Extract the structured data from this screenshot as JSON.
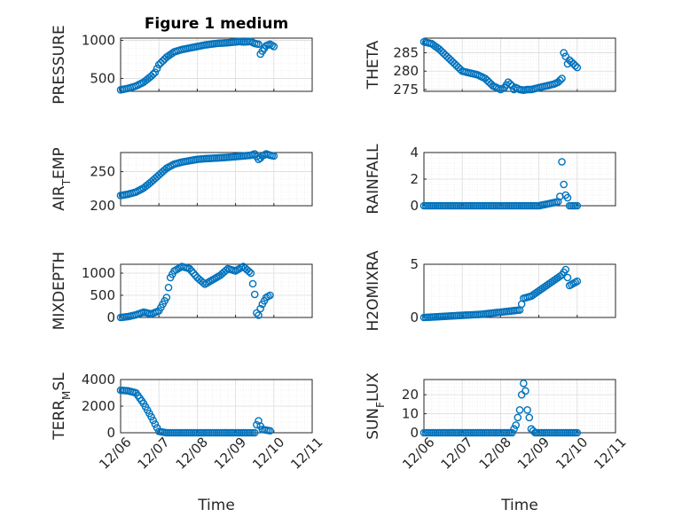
{
  "chart_data": [
    {
      "id": "pressure",
      "type": "scatter",
      "title": "Figure 1 medium",
      "ylabel": "PRESSURE",
      "ylim": [
        330,
        1030
      ],
      "yticks": [
        500,
        1000
      ],
      "xlim": [
        0,
        5
      ],
      "xtick_labels": [
        "12/06",
        "12/07",
        "12/08",
        "12/09",
        "12/10",
        "12/11"
      ],
      "color": "#0072BD",
      "x": [
        0,
        0.2,
        0.4,
        0.6,
        0.8,
        0.9,
        1.0,
        1.2,
        1.4,
        1.6,
        1.8,
        2.0,
        2.2,
        2.5,
        2.8,
        3.1,
        3.2,
        3.4,
        3.5,
        3.6,
        3.65,
        3.7,
        3.8,
        3.9,
        4.0
      ],
      "y": [
        350,
        370,
        400,
        450,
        530,
        580,
        680,
        780,
        850,
        880,
        900,
        920,
        940,
        960,
        970,
        985,
        980,
        985,
        960,
        950,
        820,
        860,
        930,
        950,
        920
      ]
    },
    {
      "id": "theta",
      "type": "scatter",
      "ylabel": "THETA",
      "ylim": [
        274.5,
        289
      ],
      "yticks": [
        275,
        280,
        285
      ],
      "xlim": [
        0,
        5
      ],
      "x": [
        0,
        0.2,
        0.4,
        0.6,
        0.8,
        1.0,
        1.2,
        1.4,
        1.6,
        1.8,
        2.0,
        2.1,
        2.2,
        2.3,
        2.35,
        2.4,
        2.5,
        2.6,
        2.7,
        2.8,
        3.0,
        3.2,
        3.4,
        3.5,
        3.6,
        3.65,
        3.7,
        3.75,
        3.8,
        3.9,
        4.0
      ],
      "y": [
        288,
        287.5,
        286,
        284,
        282,
        280,
        279.5,
        279,
        278,
        276,
        275,
        275.5,
        277,
        276,
        275,
        275.5,
        275,
        274.8,
        275,
        275,
        275.5,
        276,
        276.5,
        277,
        278,
        285,
        284,
        282,
        283,
        282,
        281
      ]
    },
    {
      "id": "air_temp",
      "type": "scatter",
      "ylabel": "AIR_TEMP",
      "ylim": [
        200,
        278
      ],
      "yticks": [
        200,
        250
      ],
      "xlim": [
        0,
        5
      ],
      "x": [
        0,
        0.2,
        0.4,
        0.6,
        0.8,
        1.0,
        1.2,
        1.4,
        1.6,
        1.8,
        2.0,
        2.2,
        2.5,
        2.8,
        3.0,
        3.2,
        3.4,
        3.5,
        3.6,
        3.65,
        3.7,
        3.8,
        3.9,
        4.0
      ],
      "y": [
        215,
        217,
        220,
        226,
        235,
        245,
        255,
        261,
        264,
        266,
        268,
        269,
        270,
        271,
        272,
        273,
        274,
        276,
        268,
        270,
        273,
        276,
        274,
        273
      ]
    },
    {
      "id": "rainfall",
      "type": "scatter",
      "ylabel": "RAINFALL",
      "ylim": [
        0,
        4
      ],
      "yticks": [
        0,
        2,
        4
      ],
      "xlim": [
        0,
        5
      ],
      "x": [
        0,
        0.5,
        1.0,
        1.5,
        2.0,
        2.5,
        3.0,
        3.5,
        3.55,
        3.6,
        3.65,
        3.7,
        3.75,
        3.8,
        3.9,
        4.0
      ],
      "y": [
        0,
        0,
        0,
        0,
        0,
        0,
        0,
        0.3,
        0.7,
        3.3,
        1.6,
        0.8,
        0.6,
        0,
        0,
        0
      ]
    },
    {
      "id": "mixdepth",
      "type": "scatter",
      "ylabel": "MIXDEPTH",
      "ylim": [
        0,
        1200
      ],
      "yticks": [
        0,
        500,
        1000
      ],
      "xlim": [
        0,
        5
      ],
      "x": [
        0,
        0.2,
        0.4,
        0.6,
        0.8,
        1.0,
        1.1,
        1.2,
        1.3,
        1.4,
        1.6,
        1.8,
        2.0,
        2.2,
        2.4,
        2.6,
        2.8,
        3.0,
        3.2,
        3.4,
        3.5,
        3.55,
        3.6,
        3.65,
        3.7,
        3.8,
        3.9
      ],
      "y": [
        0,
        20,
        60,
        120,
        80,
        150,
        300,
        450,
        900,
        1050,
        1150,
        1100,
        900,
        750,
        850,
        950,
        1100,
        1050,
        1150,
        1000,
        520,
        100,
        50,
        200,
        300,
        450,
        500
      ]
    },
    {
      "id": "h2omixra",
      "type": "scatter",
      "ylabel": "H2OMIXRA",
      "ylim": [
        0,
        5
      ],
      "yticks": [
        0,
        5
      ],
      "xlim": [
        0,
        5
      ],
      "x": [
        0,
        0.5,
        1.0,
        1.5,
        2.0,
        2.5,
        2.6,
        2.8,
        3.0,
        3.2,
        3.4,
        3.6,
        3.7,
        3.8,
        3.9,
        4.0
      ],
      "y": [
        0,
        0.1,
        0.2,
        0.3,
        0.5,
        0.7,
        1.8,
        2.0,
        2.5,
        3.0,
        3.5,
        4.0,
        4.5,
        3.0,
        3.2,
        3.4
      ]
    },
    {
      "id": "terr_msl",
      "type": "scatter",
      "ylabel": "TERR_MSL",
      "ylim": [
        0,
        4000
      ],
      "yticks": [
        0,
        2000,
        4000
      ],
      "xlim": [
        0,
        5
      ],
      "x": [
        0,
        0.2,
        0.4,
        0.6,
        0.8,
        1.0,
        1.2,
        1.5,
        2.0,
        2.5,
        3.0,
        3.5,
        3.55,
        3.6,
        3.65,
        3.7,
        3.8,
        3.9
      ],
      "y": [
        3200,
        3150,
        3000,
        2200,
        1200,
        100,
        0,
        0,
        0,
        0,
        0,
        0,
        600,
        900,
        500,
        250,
        200,
        150
      ]
    },
    {
      "id": "sun_flux",
      "type": "scatter",
      "ylabel": "SUN_FLUX",
      "ylim": [
        0,
        28
      ],
      "yticks": [
        0,
        10,
        20
      ],
      "xlim": [
        0,
        5
      ],
      "x": [
        0,
        0.5,
        1.0,
        1.5,
        2.0,
        2.3,
        2.4,
        2.5,
        2.55,
        2.6,
        2.65,
        2.7,
        2.75,
        2.8,
        2.9,
        3.0,
        3.5,
        4.0
      ],
      "y": [
        0,
        0,
        0,
        0,
        0,
        0,
        4,
        12,
        20,
        26,
        22,
        12,
        8,
        2,
        0,
        0,
        0,
        0
      ]
    }
  ],
  "xlabel": "Time"
}
